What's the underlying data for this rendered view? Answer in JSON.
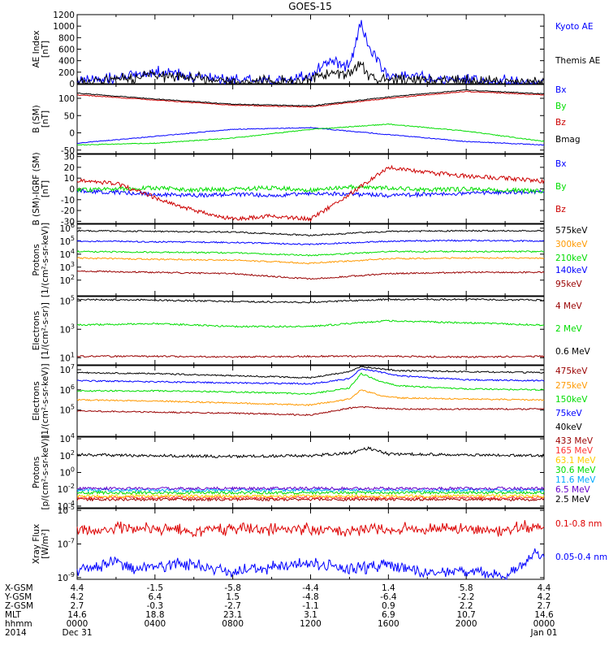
{
  "title": "GOES-15",
  "chart_data": [
    {
      "panel": "ae",
      "type": "line",
      "ylabel": [
        "AE Index",
        "[nT]"
      ],
      "ylim": [
        0,
        1200
      ],
      "yticks": [
        "1200",
        "1000",
        "800",
        "600",
        "400",
        "200",
        "0"
      ],
      "ytick_values": [
        1200,
        1000,
        800,
        600,
        400,
        200,
        0
      ],
      "x_hours": [
        0,
        2,
        4,
        6,
        8,
        10,
        12,
        13,
        14,
        14.6,
        15,
        16,
        18,
        20,
        22,
        24
      ],
      "series": [
        {
          "name": "Kyoto AE",
          "color": "#0000ff",
          "values": [
            60,
            90,
            200,
            120,
            60,
            40,
            130,
            420,
            300,
            1050,
            600,
            150,
            110,
            60,
            40,
            30
          ]
        },
        {
          "name": "Themis AE",
          "color": "#000000",
          "values": [
            30,
            60,
            150,
            90,
            40,
            30,
            80,
            200,
            150,
            400,
            100,
            70,
            60,
            40,
            30,
            20
          ]
        }
      ]
    },
    {
      "panel": "bsm",
      "type": "line",
      "ylabel": [
        "B (SM)",
        "[nT]"
      ],
      "ylim": [
        -60,
        140
      ],
      "yticks": [
        "100",
        "50",
        "0",
        "-50"
      ],
      "ytick_values": [
        100,
        50,
        0,
        -50
      ],
      "x_hours": [
        0,
        4,
        8,
        12,
        16,
        20,
        24
      ],
      "series": [
        {
          "name": "Bx",
          "color": "#0000ff",
          "values": [
            -30,
            -10,
            10,
            15,
            -5,
            -25,
            -35
          ]
        },
        {
          "name": "By",
          "color": "#00dd00",
          "values": [
            -35,
            -30,
            -15,
            10,
            25,
            5,
            -25
          ]
        },
        {
          "name": "Bz",
          "color": "#cc0000",
          "values": [
            110,
            95,
            80,
            75,
            100,
            120,
            110
          ]
        },
        {
          "name": "Bmag",
          "color": "#000000",
          "values": [
            115,
            98,
            83,
            78,
            104,
            124,
            113
          ]
        }
      ]
    },
    {
      "panel": "bdiff",
      "type": "line",
      "ylabel": [
        "B (SM)-IGRF (SM)",
        "[nT]"
      ],
      "ylim": [
        -32,
        32
      ],
      "yticks": [
        "30",
        "20",
        "10",
        "0",
        "-10",
        "-20",
        "-30"
      ],
      "ytick_values": [
        30,
        20,
        10,
        0,
        -10,
        -20,
        -30
      ],
      "x_hours": [
        0,
        2,
        4,
        6,
        8,
        10,
        12,
        14,
        16,
        18,
        20,
        22,
        24
      ],
      "series": [
        {
          "name": "Bx",
          "color": "#0000ff",
          "values": [
            -2,
            -3,
            -5,
            -6,
            -5,
            -6,
            -4,
            -5,
            -6,
            -5,
            -4,
            -3,
            -3
          ]
        },
        {
          "name": "By",
          "color": "#00dd00",
          "values": [
            -1,
            0,
            1,
            -1,
            0,
            1,
            -1,
            2,
            1,
            -1,
            0,
            -1,
            -2
          ]
        },
        {
          "name": "Bz",
          "color": "#cc0000",
          "values": [
            8,
            5,
            -8,
            -20,
            -28,
            -25,
            -28,
            -5,
            20,
            15,
            12,
            10,
            7
          ]
        }
      ]
    },
    {
      "panel": "protons-low",
      "type": "line",
      "log": true,
      "ylabel": [
        "Protons",
        "[1/(cm²-s-sr-keV)]"
      ],
      "ylim_exp": [
        0.8,
        6.3
      ],
      "yticks_exp": [
        2,
        3,
        4,
        5,
        6
      ],
      "x_hours": [
        0,
        4,
        8,
        12,
        16,
        20,
        24
      ],
      "series": [
        {
          "name": "575keV",
          "color": "#000000",
          "log10": [
            5.8,
            5.75,
            5.7,
            5.45,
            5.75,
            5.8,
            5.8
          ]
        },
        {
          "name": "300keV",
          "color": "#ff9900",
          "log10": [
            3.7,
            3.6,
            3.55,
            3.3,
            3.65,
            3.7,
            3.7
          ]
        },
        {
          "name": "210keV",
          "color": "#00dd00",
          "log10": [
            4.2,
            4.15,
            4.1,
            3.9,
            4.2,
            4.2,
            4.2
          ]
        },
        {
          "name": "140keV",
          "color": "#0000ff",
          "log10": [
            5.0,
            4.95,
            4.9,
            4.75,
            5.0,
            5.05,
            5.0
          ]
        },
        {
          "name": "95keV",
          "color": "#990000",
          "log10": [
            2.7,
            2.6,
            2.5,
            2.1,
            2.5,
            2.6,
            2.6
          ]
        }
      ]
    },
    {
      "panel": "electrons-high",
      "type": "line",
      "log": true,
      "ylabel": [
        "Electrons",
        "[1/(cm²-s-sr)]"
      ],
      "ylim_exp": [
        0.5,
        5.3
      ],
      "yticks_exp": [
        1,
        3,
        5
      ],
      "x_hours": [
        0,
        4,
        8,
        12,
        16,
        20,
        24
      ],
      "series": [
        {
          "name": "4 MeV",
          "color": "#990000",
          "log10": [
            1.1,
            1.1,
            1.05,
            1.1,
            1.1,
            1.05,
            1.1
          ]
        },
        {
          "name": "2 MeV",
          "color": "#00dd00",
          "log10": [
            3.3,
            3.4,
            3.2,
            3.2,
            3.6,
            3.45,
            3.3
          ]
        },
        {
          "name": "0.6 MeV",
          "color": "#000000",
          "log10": [
            5.1,
            5.05,
            4.95,
            4.9,
            5.1,
            5.1,
            5.05
          ]
        }
      ]
    },
    {
      "panel": "electrons-low",
      "type": "line",
      "log": true,
      "ylabel": [
        "Electrons",
        "[1/(cm²-s-sr-keV)]"
      ],
      "ylim_exp": [
        3.7,
        7.2
      ],
      "yticks_exp": [
        5,
        6,
        7
      ],
      "x_hours": [
        0,
        4,
        8,
        12,
        14,
        14.6,
        15.5,
        16.5,
        20,
        24
      ],
      "series": [
        {
          "name": "475keV",
          "color": "#990000",
          "log10": [
            4.95,
            4.9,
            4.85,
            4.75,
            5.1,
            5.15,
            5.1,
            5.05,
            5.05,
            5.05
          ]
        },
        {
          "name": "275keV",
          "color": "#ff9900",
          "log10": [
            5.5,
            5.45,
            5.35,
            5.25,
            5.55,
            6.0,
            5.75,
            5.6,
            5.55,
            5.5
          ]
        },
        {
          "name": "150keV",
          "color": "#00dd00",
          "log10": [
            5.95,
            5.95,
            5.9,
            5.8,
            6.1,
            6.8,
            6.45,
            6.2,
            6.05,
            6.0
          ]
        },
        {
          "name": "75keV",
          "color": "#0000ff",
          "log10": [
            6.45,
            6.4,
            6.35,
            6.3,
            6.55,
            7.05,
            6.9,
            6.7,
            6.5,
            6.45
          ]
        },
        {
          "name": "40keV",
          "color": "#000000",
          "log10": [
            6.85,
            6.8,
            6.7,
            6.6,
            6.9,
            7.15,
            7.05,
            6.95,
            6.9,
            6.85
          ]
        }
      ]
    },
    {
      "panel": "protons-high",
      "type": "line",
      "log": true,
      "ylabel": [
        "Protons",
        "[p/(cm²-s-sr-keV)]"
      ],
      "ylim_exp": [
        -4.2,
        4.2
      ],
      "yticks_exp": [
        -4,
        -2,
        0,
        2,
        4
      ],
      "x_hours": [
        0,
        4,
        8,
        12,
        14,
        15,
        16,
        20,
        24
      ],
      "series": [
        {
          "name": "433 MeV",
          "color": "#990000",
          "log10": [
            -3.2,
            -3.2,
            -3.2,
            -3.2,
            -3.2,
            -3.2,
            -3.2,
            -3.2,
            -3.2
          ]
        },
        {
          "name": "165 MeV",
          "color": "#ff3333",
          "log10": [
            -3.0,
            -3.0,
            -3.0,
            -3.0,
            -3.0,
            -3.0,
            -3.0,
            -3.0,
            -3.0
          ]
        },
        {
          "name": "63.1 MeV",
          "color": "#ffcc00",
          "log10": [
            -2.8,
            -2.8,
            -2.8,
            -2.8,
            -2.8,
            -2.8,
            -2.8,
            -2.8,
            -2.8
          ]
        },
        {
          "name": "30.6 MeV",
          "color": "#00dd00",
          "log10": [
            -2.4,
            -2.4,
            -2.4,
            -2.4,
            -2.4,
            -2.4,
            -2.4,
            -2.4,
            -2.4
          ]
        },
        {
          "name": "11.6 MeV",
          "color": "#00aaff",
          "log10": [
            -2.1,
            -2.1,
            -2.1,
            -2.1,
            -2.1,
            -2.1,
            -2.1,
            -2.1,
            -2.1
          ]
        },
        {
          "name": "6.5 MeV",
          "color": "#6600cc",
          "log10": [
            -1.9,
            -1.9,
            -1.9,
            -1.9,
            -1.9,
            -1.9,
            -1.9,
            -1.9,
            -1.9
          ]
        },
        {
          "name": "2.5 MeV",
          "color": "#000000",
          "log10": [
            2.1,
            2.0,
            1.9,
            2.0,
            2.3,
            2.9,
            2.2,
            2.1,
            2.0
          ]
        }
      ]
    },
    {
      "panel": "xray",
      "type": "line",
      "log": true,
      "ylabel": [
        "Xray Flux",
        "[W/m²]"
      ],
      "ylim_exp": [
        -9.1,
        -4.9
      ],
      "yticks_exp": [
        -9,
        -7,
        -5
      ],
      "x_hours": [
        0,
        1,
        2,
        3,
        4,
        6,
        8,
        10,
        12,
        14,
        16,
        18,
        20,
        22,
        23.5,
        24
      ],
      "series": [
        {
          "name": "0.1-0.8 nm",
          "color": "#dd0000",
          "log10": [
            -6.1,
            -6.2,
            -6.0,
            -6.15,
            -6.1,
            -6.2,
            -6.05,
            -6.15,
            -6.1,
            -6.2,
            -6.1,
            -6.15,
            -6.05,
            -6.2,
            -5.9,
            -6.0
          ]
        },
        {
          "name": "0.05-0.4 nm",
          "color": "#0000ff",
          "log10": [
            -8.6,
            -8.4,
            -8.0,
            -8.5,
            -8.3,
            -8.2,
            -8.7,
            -8.4,
            -8.1,
            -8.5,
            -8.2,
            -8.7,
            -8.6,
            -8.9,
            -7.6,
            -7.8
          ]
        }
      ]
    }
  ],
  "x_axis": {
    "tick_hours": [
      0,
      4,
      8,
      12,
      16,
      20,
      24
    ],
    "rows": [
      {
        "label": "X-GSM",
        "values": [
          "4.4",
          "-1.5",
          "-5.8",
          "-4.4",
          "1.4",
          "5.8",
          "4.4"
        ]
      },
      {
        "label": "Y-GSM",
        "values": [
          "4.2",
          "6.4",
          "1.5",
          "-4.8",
          "-6.4",
          "-2.2",
          "4.2"
        ]
      },
      {
        "label": "Z-GSM",
        "values": [
          "2.7",
          "-0.3",
          "-2.7",
          "-1.1",
          "0.9",
          "2.2",
          "2.7"
        ]
      },
      {
        "label": "MLT",
        "values": [
          "14.6",
          "18.8",
          "23.1",
          "3.1",
          "6.9",
          "10.7",
          "14.6"
        ]
      },
      {
        "label": "hhmm",
        "values": [
          "0000",
          "0400",
          "0800",
          "1200",
          "1600",
          "2000",
          "0000"
        ]
      },
      {
        "label": "2014",
        "values": [
          "Dec 31",
          "",
          "",
          "",
          "",
          "",
          "Jan 01"
        ]
      }
    ]
  }
}
